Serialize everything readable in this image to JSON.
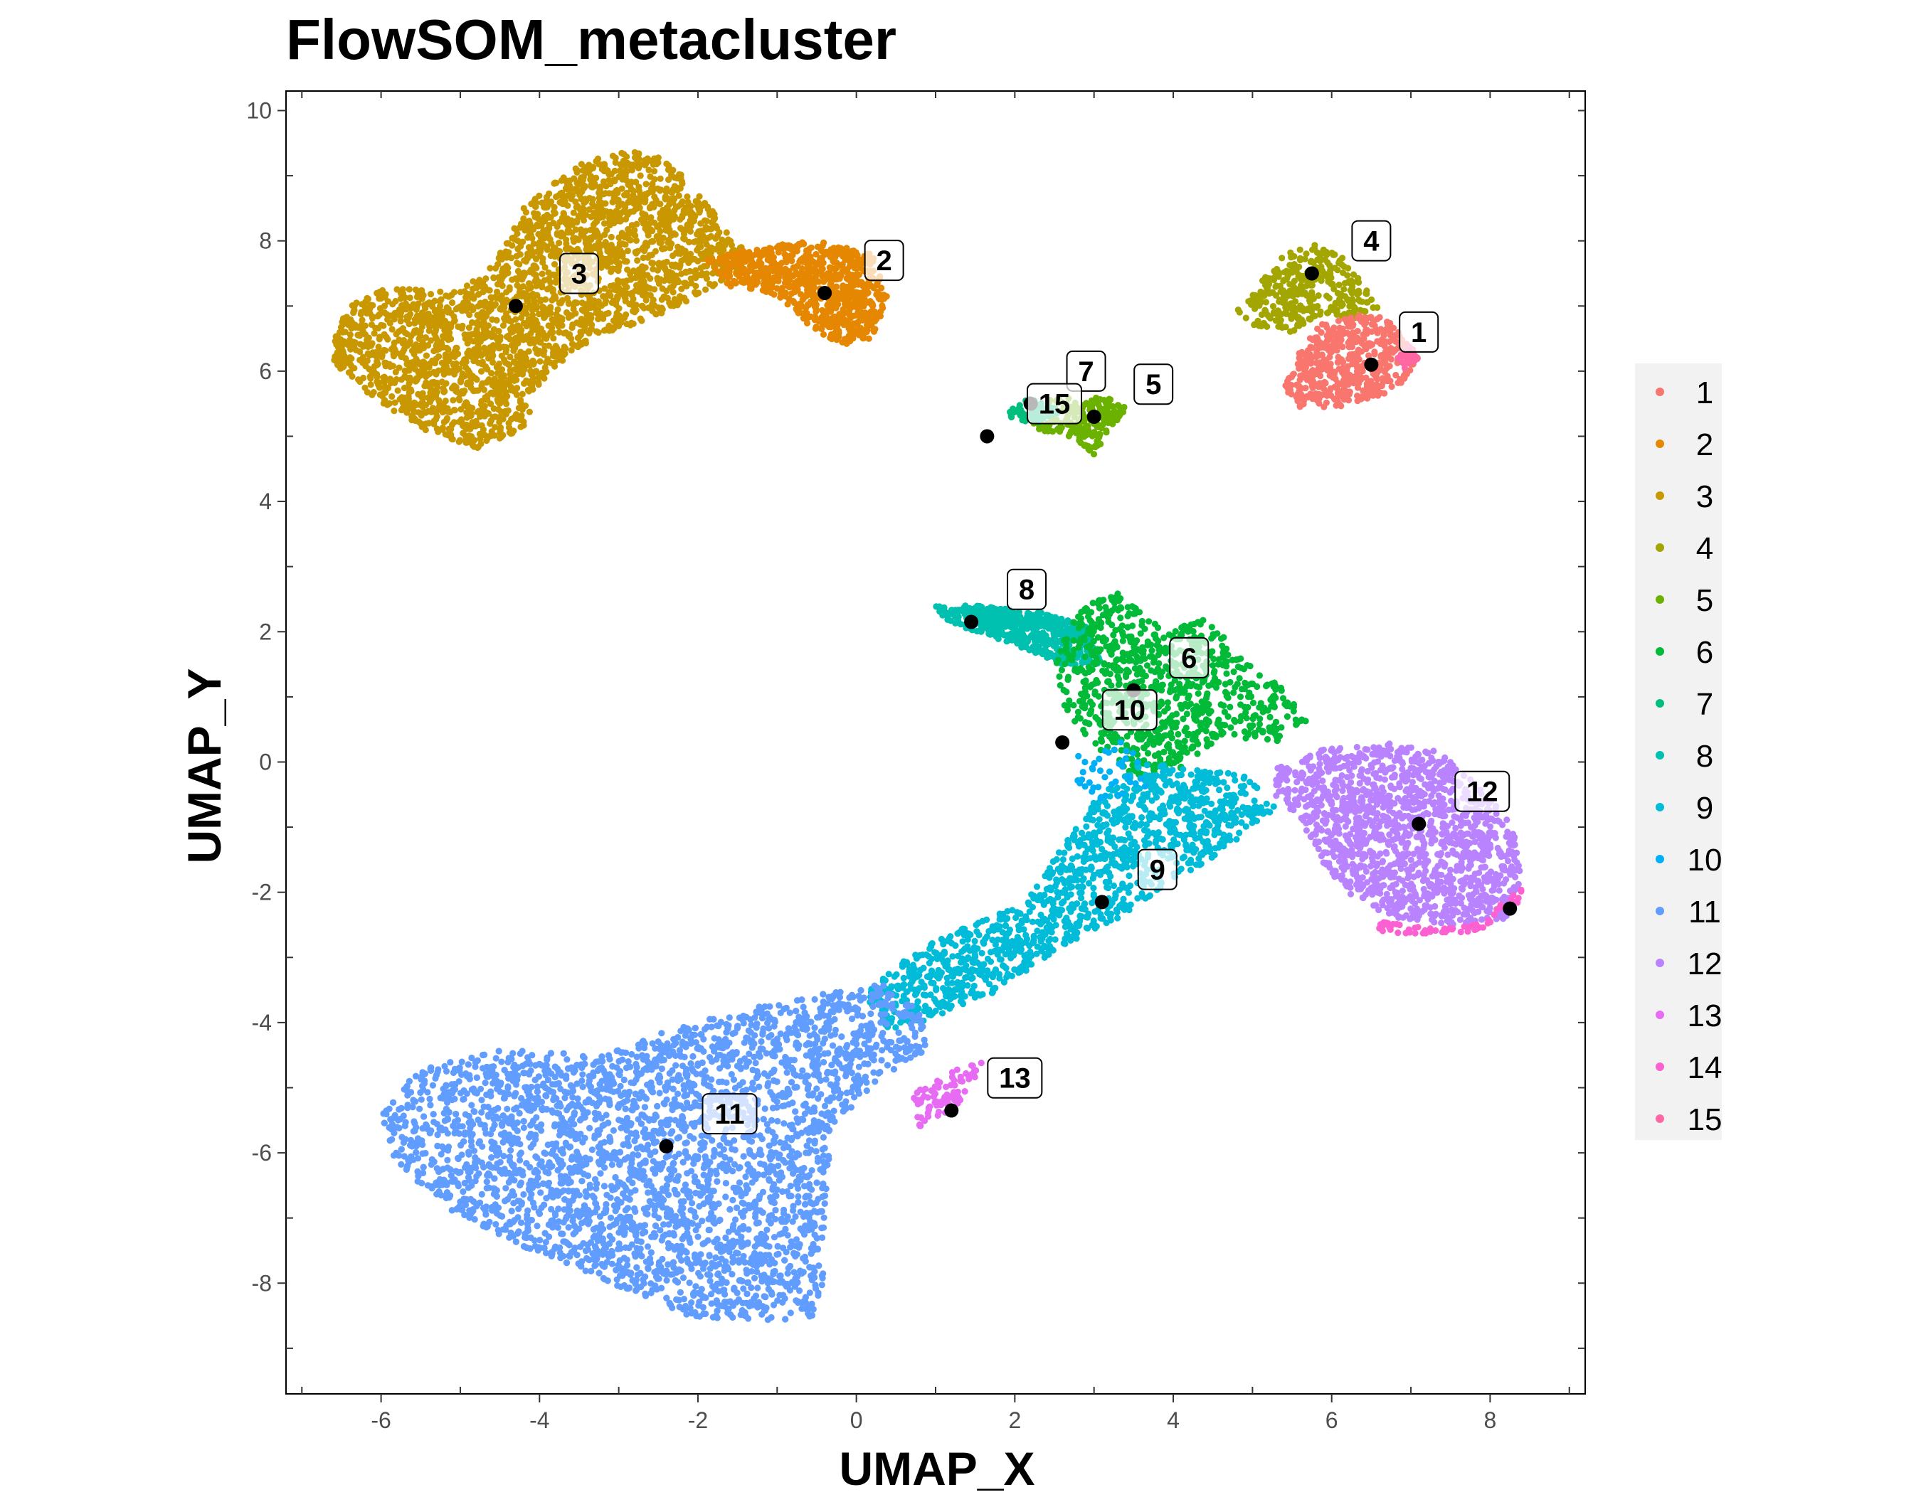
{
  "chart_data": {
    "type": "scatter",
    "title": "FlowSOM_metacluster",
    "xlabel": "UMAP_X",
    "ylabel": "UMAP_Y",
    "xlim": [
      -7.2,
      9.2
    ],
    "ylim": [
      -9.7,
      10.3
    ],
    "x_ticks": [
      -6,
      -4,
      -2,
      0,
      2,
      4,
      6,
      8
    ],
    "y_ticks": [
      -8,
      -6,
      -4,
      -2,
      0,
      2,
      4,
      6,
      8,
      10
    ],
    "grid": false,
    "legend_position": "right",
    "legend": [
      {
        "label": "1",
        "color": "#F8766D"
      },
      {
        "label": "2",
        "color": "#E58700"
      },
      {
        "label": "3",
        "color": "#C99800"
      },
      {
        "label": "4",
        "color": "#A3A500"
      },
      {
        "label": "5",
        "color": "#6BB100"
      },
      {
        "label": "6",
        "color": "#00BA38"
      },
      {
        "label": "7",
        "color": "#00BF7D"
      },
      {
        "label": "8",
        "color": "#00C0AF"
      },
      {
        "label": "9",
        "color": "#00BCD8"
      },
      {
        "label": "10",
        "color": "#00B0F6"
      },
      {
        "label": "11",
        "color": "#619CFF"
      },
      {
        "label": "12",
        "color": "#B983FF"
      },
      {
        "label": "13",
        "color": "#E76BF3"
      },
      {
        "label": "14",
        "color": "#FD61D1"
      },
      {
        "label": "15",
        "color": "#FF67A4"
      }
    ],
    "centroids": [
      {
        "cluster": "1",
        "x": 6.5,
        "y": 6.1,
        "label_x": 7.1,
        "label_y": 6.6
      },
      {
        "cluster": "2",
        "x": -0.4,
        "y": 7.2,
        "label_x": 0.35,
        "label_y": 7.7
      },
      {
        "cluster": "3",
        "x": -4.3,
        "y": 7.0,
        "label_x": -3.5,
        "label_y": 7.5
      },
      {
        "cluster": "4",
        "x": 5.75,
        "y": 7.5,
        "label_x": 6.5,
        "label_y": 8.0
      },
      {
        "cluster": "5",
        "x": 3.0,
        "y": 5.3,
        "label_x": 3.75,
        "label_y": 5.8
      },
      {
        "cluster": "6",
        "x": 3.5,
        "y": 1.1,
        "label_x": 4.2,
        "label_y": 1.6
      },
      {
        "cluster": "7",
        "x": 2.2,
        "y": 5.5,
        "label_x": 2.9,
        "label_y": 6.0
      },
      {
        "cluster": "8",
        "x": 1.45,
        "y": 2.15,
        "label_x": 2.15,
        "label_y": 2.65
      },
      {
        "cluster": "9",
        "x": 3.1,
        "y": -2.15,
        "label_x": 3.8,
        "label_y": -1.65
      },
      {
        "cluster": "10",
        "x": 2.6,
        "y": 0.3,
        "label_x": 3.45,
        "label_y": 0.8
      },
      {
        "cluster": "11",
        "x": -2.4,
        "y": -5.9,
        "label_x": -1.6,
        "label_y": -5.4
      },
      {
        "cluster": "12",
        "x": 7.1,
        "y": -0.95,
        "label_x": 7.9,
        "label_y": -0.45
      },
      {
        "cluster": "13",
        "x": 1.2,
        "y": -5.35,
        "label_x": 2.0,
        "label_y": -4.85
      },
      {
        "cluster": "14",
        "x": 8.25,
        "y": -2.25
      },
      {
        "cluster": "15",
        "x": 1.65,
        "y": 5.0,
        "label_x": 2.5,
        "label_y": 5.5
      }
    ],
    "regions": [
      {
        "cluster": "3",
        "n": 2600,
        "polygon": [
          [
            -6.6,
            6.5
          ],
          [
            -6.4,
            7.0
          ],
          [
            -5.9,
            7.3
          ],
          [
            -5.1,
            7.2
          ],
          [
            -4.6,
            7.6
          ],
          [
            -4.2,
            8.5
          ],
          [
            -3.5,
            9.2
          ],
          [
            -2.8,
            9.4
          ],
          [
            -2.4,
            9.3
          ],
          [
            -1.9,
            8.6
          ],
          [
            -1.6,
            8.1
          ],
          [
            -1.3,
            7.7
          ],
          [
            -1.6,
            7.4
          ],
          [
            -2.1,
            7.1
          ],
          [
            -2.6,
            6.8
          ],
          [
            -3.1,
            6.6
          ],
          [
            -3.6,
            6.3
          ],
          [
            -4.0,
            5.8
          ],
          [
            -4.2,
            5.1
          ],
          [
            -4.8,
            4.8
          ],
          [
            -5.5,
            5.1
          ],
          [
            -6.2,
            5.7
          ],
          [
            -6.6,
            6.1
          ]
        ]
      },
      {
        "cluster": "2",
        "n": 800,
        "polygon": [
          [
            -1.9,
            7.7
          ],
          [
            -1.3,
            7.9
          ],
          [
            -0.5,
            8.0
          ],
          [
            0.2,
            7.8
          ],
          [
            0.4,
            7.1
          ],
          [
            0.2,
            6.5
          ],
          [
            -0.2,
            6.4
          ],
          [
            -0.6,
            6.7
          ],
          [
            -1.1,
            7.2
          ],
          [
            -1.6,
            7.3
          ]
        ]
      },
      {
        "cluster": "4",
        "n": 350,
        "polygon": [
          [
            5.0,
            7.2
          ],
          [
            5.4,
            7.8
          ],
          [
            5.8,
            7.95
          ],
          [
            6.2,
            7.7
          ],
          [
            6.6,
            6.95
          ],
          [
            6.3,
            6.75
          ],
          [
            5.9,
            6.9
          ],
          [
            5.5,
            6.6
          ],
          [
            5.0,
            6.7
          ],
          [
            4.8,
            6.95
          ]
        ]
      },
      {
        "cluster": "1",
        "n": 500,
        "polygon": [
          [
            5.4,
            5.75
          ],
          [
            5.6,
            6.3
          ],
          [
            5.8,
            6.7
          ],
          [
            6.5,
            6.9
          ],
          [
            6.8,
            6.7
          ],
          [
            7.1,
            6.2
          ],
          [
            6.9,
            5.8
          ],
          [
            6.5,
            5.55
          ],
          [
            6.1,
            5.45
          ],
          [
            5.6,
            5.45
          ]
        ]
      },
      {
        "cluster": "5",
        "n": 220,
        "polygon": [
          [
            2.1,
            5.3
          ],
          [
            2.5,
            5.6
          ],
          [
            3.1,
            5.6
          ],
          [
            3.45,
            5.5
          ],
          [
            3.2,
            5.1
          ],
          [
            3.0,
            4.7
          ],
          [
            2.7,
            5.0
          ],
          [
            2.3,
            5.1
          ]
        ]
      },
      {
        "cluster": "8",
        "n": 500,
        "polygon": [
          [
            1.0,
            2.4
          ],
          [
            1.5,
            2.4
          ],
          [
            2.3,
            2.3
          ],
          [
            2.9,
            2.1
          ],
          [
            3.1,
            1.5
          ],
          [
            2.6,
            1.5
          ],
          [
            2.0,
            1.8
          ],
          [
            1.5,
            2.0
          ],
          [
            1.1,
            2.2
          ]
        ]
      },
      {
        "cluster": "6",
        "n": 900,
        "polygon": [
          [
            2.5,
            1.5
          ],
          [
            2.8,
            2.4
          ],
          [
            3.3,
            2.6
          ],
          [
            3.9,
            2.0
          ],
          [
            4.4,
            2.2
          ],
          [
            4.9,
            1.6
          ],
          [
            5.4,
            1.1
          ],
          [
            5.7,
            0.6
          ],
          [
            5.3,
            0.3
          ],
          [
            4.6,
            0.4
          ],
          [
            4.0,
            -0.2
          ],
          [
            3.5,
            -0.2
          ],
          [
            3.0,
            0.2
          ],
          [
            2.6,
            0.9
          ]
        ]
      },
      {
        "cluster": "9",
        "n": 1300,
        "polygon": [
          [
            0.4,
            -3.2
          ],
          [
            1.2,
            -2.6
          ],
          [
            2.1,
            -2.2
          ],
          [
            2.6,
            -1.3
          ],
          [
            3.0,
            -0.6
          ],
          [
            3.6,
            0.0
          ],
          [
            4.2,
            -0.1
          ],
          [
            4.9,
            -0.2
          ],
          [
            5.3,
            -0.7
          ],
          [
            4.6,
            -1.4
          ],
          [
            3.9,
            -1.9
          ],
          [
            3.3,
            -2.4
          ],
          [
            2.5,
            -2.9
          ],
          [
            1.7,
            -3.6
          ],
          [
            0.9,
            -4.0
          ],
          [
            0.4,
            -4.1
          ],
          [
            0.1,
            -3.6
          ]
        ]
      },
      {
        "cluster": "12",
        "n": 1400,
        "polygon": [
          [
            5.3,
            -0.1
          ],
          [
            5.9,
            0.2
          ],
          [
            6.6,
            0.3
          ],
          [
            7.3,
            0.2
          ],
          [
            7.9,
            -0.4
          ],
          [
            8.3,
            -1.0
          ],
          [
            8.4,
            -1.8
          ],
          [
            8.2,
            -2.4
          ],
          [
            7.6,
            -2.5
          ],
          [
            6.8,
            -2.4
          ],
          [
            6.3,
            -2.1
          ],
          [
            5.8,
            -1.5
          ],
          [
            5.6,
            -0.9
          ],
          [
            5.3,
            -0.6
          ]
        ]
      },
      {
        "cluster": "11",
        "n": 4600,
        "polygon": [
          [
            -6.0,
            -5.4
          ],
          [
            -5.5,
            -4.7
          ],
          [
            -4.5,
            -4.4
          ],
          [
            -3.2,
            -4.5
          ],
          [
            -2.4,
            -4.1
          ],
          [
            -1.4,
            -3.8
          ],
          [
            -0.6,
            -3.6
          ],
          [
            0.3,
            -3.4
          ],
          [
            0.8,
            -3.8
          ],
          [
            0.9,
            -4.4
          ],
          [
            0.3,
            -4.9
          ],
          [
            -0.3,
            -5.6
          ],
          [
            -0.4,
            -6.8
          ],
          [
            -0.4,
            -7.8
          ],
          [
            -0.5,
            -8.5
          ],
          [
            -1.2,
            -8.6
          ],
          [
            -2.1,
            -8.5
          ],
          [
            -3.1,
            -8.0
          ],
          [
            -4.1,
            -7.5
          ],
          [
            -5.1,
            -6.9
          ],
          [
            -5.8,
            -6.2
          ]
        ]
      },
      {
        "cluster": "13",
        "n": 90,
        "polygon": [
          [
            0.7,
            -5.1
          ],
          [
            1.3,
            -4.7
          ],
          [
            1.6,
            -4.6
          ],
          [
            1.3,
            -5.3
          ],
          [
            0.8,
            -5.6
          ]
        ]
      },
      {
        "cluster": "14",
        "n": 70,
        "polygon": [
          [
            6.6,
            -2.45
          ],
          [
            7.2,
            -2.55
          ],
          [
            7.9,
            -2.45
          ],
          [
            8.3,
            -2.0
          ],
          [
            8.45,
            -1.8
          ],
          [
            8.3,
            -2.35
          ],
          [
            7.8,
            -2.6
          ],
          [
            7.1,
            -2.65
          ],
          [
            6.6,
            -2.6
          ]
        ]
      },
      {
        "cluster": "7",
        "n": 60,
        "polygon": [
          [
            1.8,
            5.3
          ],
          [
            2.2,
            5.6
          ],
          [
            2.6,
            5.4
          ],
          [
            2.3,
            5.2
          ]
        ]
      },
      {
        "cluster": "10",
        "n": 40,
        "polygon": [
          [
            2.6,
            0.0
          ],
          [
            3.4,
            0.4
          ],
          [
            3.8,
            -0.4
          ],
          [
            3.0,
            -0.6
          ]
        ]
      },
      {
        "cluster": "15",
        "n": 25,
        "polygon": [
          [
            6.8,
            6.2
          ],
          [
            7.0,
            6.4
          ],
          [
            7.1,
            6.2
          ],
          [
            6.9,
            6.0
          ]
        ]
      }
    ]
  }
}
